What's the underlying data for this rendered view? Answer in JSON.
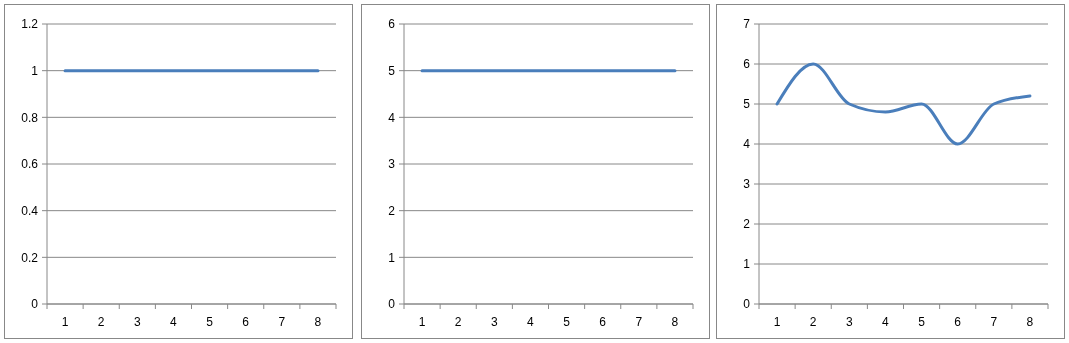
{
  "chart_data": [
    {
      "type": "line",
      "categories": [
        "1",
        "2",
        "3",
        "4",
        "5",
        "6",
        "7",
        "8"
      ],
      "series": [
        {
          "color": "#4a7ebb",
          "values": [
            1,
            1,
            1,
            1,
            1,
            1,
            1,
            1
          ]
        }
      ],
      "ylim": [
        0,
        1.2
      ],
      "yticks": [
        0,
        0.2,
        0.4,
        0.6,
        0.8,
        1,
        1.2
      ],
      "grid": "y"
    },
    {
      "type": "line",
      "categories": [
        "1",
        "2",
        "3",
        "4",
        "5",
        "6",
        "7",
        "8"
      ],
      "series": [
        {
          "color": "#4a7ebb",
          "values": [
            5,
            5,
            5,
            5,
            5,
            5,
            5,
            5
          ]
        }
      ],
      "ylim": [
        0,
        6
      ],
      "yticks": [
        0,
        1,
        2,
        3,
        4,
        5,
        6
      ],
      "grid": "y"
    },
    {
      "type": "line",
      "categories": [
        "1",
        "2",
        "3",
        "4",
        "5",
        "6",
        "7",
        "8"
      ],
      "series": [
        {
          "color": "#4a7ebb",
          "values": [
            5,
            6,
            5,
            4.8,
            5,
            4,
            5,
            5.2
          ]
        }
      ],
      "ylim": [
        0,
        7
      ],
      "yticks": [
        0,
        1,
        2,
        3,
        4,
        5,
        6,
        7
      ],
      "grid": "y"
    }
  ]
}
